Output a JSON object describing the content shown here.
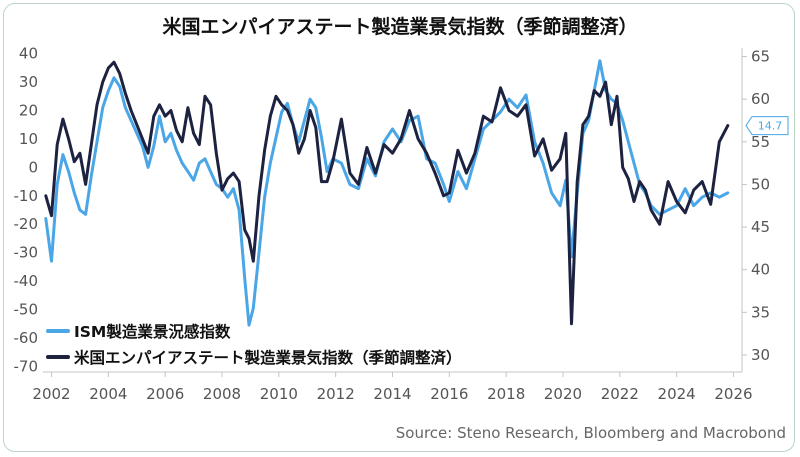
{
  "chart_data": {
    "type": "line",
    "title": "米国エンパイアステート製造業景気指数（季節調整済）",
    "source": "Source: Steno Research, Bloomberg and Macrobond",
    "x_ticks": [
      "2002",
      "2004",
      "2006",
      "2008",
      "2010",
      "2012",
      "2014",
      "2016",
      "2018",
      "2020",
      "2022",
      "2024",
      "2026"
    ],
    "xlim": [
      2001.7,
      2026.3
    ],
    "y_left": {
      "lim": [
        -72,
        42
      ],
      "ticks": [
        "40",
        "30",
        "20",
        "10",
        "0",
        "-10",
        "-20",
        "-30",
        "-40",
        "-50",
        "-60",
        "-70"
      ]
    },
    "y_right": {
      "lim": [
        28,
        66
      ],
      "ticks": [
        "65",
        "60",
        "55",
        "50",
        "45",
        "40",
        "35",
        "30"
      ]
    },
    "last_value_label": "14.7",
    "grid": false,
    "legend_position": "bottom-left",
    "series": [
      {
        "name": "ISM製造業景況感指数",
        "axis": "right",
        "color": "#4aa6e6",
        "x": [
          2001.8,
          2002.0,
          2002.2,
          2002.4,
          2002.6,
          2002.8,
          2003.0,
          2003.2,
          2003.4,
          2003.6,
          2003.8,
          2004.0,
          2004.2,
          2004.4,
          2004.6,
          2004.8,
          2005.0,
          2005.2,
          2005.4,
          2005.6,
          2005.8,
          2006.0,
          2006.2,
          2006.4,
          2006.6,
          2006.8,
          2007.0,
          2007.2,
          2007.4,
          2007.6,
          2007.8,
          2008.0,
          2008.2,
          2008.4,
          2008.6,
          2008.8,
          2008.95,
          2009.1,
          2009.3,
          2009.5,
          2009.7,
          2009.9,
          2010.1,
          2010.3,
          2010.5,
          2010.7,
          2010.9,
          2011.1,
          2011.3,
          2011.5,
          2011.7,
          2011.9,
          2012.2,
          2012.5,
          2012.8,
          2013.1,
          2013.4,
          2013.7,
          2014.0,
          2014.3,
          2014.6,
          2014.9,
          2015.2,
          2015.5,
          2015.8,
          2016.0,
          2016.3,
          2016.6,
          2016.9,
          2017.2,
          2017.5,
          2017.8,
          2018.1,
          2018.4,
          2018.7,
          2019.0,
          2019.3,
          2019.6,
          2019.9,
          2020.1,
          2020.3,
          2020.5,
          2020.7,
          2020.9,
          2021.1,
          2021.3,
          2021.5,
          2021.7,
          2021.9,
          2022.1,
          2022.3,
          2022.5,
          2022.7,
          2022.9,
          2023.1,
          2023.4,
          2023.7,
          2024.0,
          2024.3,
          2024.6,
          2024.9,
          2025.2,
          2025.5,
          2025.8
        ],
        "values": [
          46.0,
          41.0,
          50.0,
          53.5,
          51.5,
          49.0,
          47.0,
          46.5,
          51.0,
          55.0,
          59.0,
          61.0,
          62.5,
          61.5,
          59.0,
          57.5,
          56.0,
          54.5,
          52.0,
          54.5,
          58.0,
          55.0,
          56.0,
          54.0,
          52.5,
          51.5,
          50.5,
          52.5,
          53.0,
          51.5,
          50.0,
          49.5,
          48.5,
          49.5,
          47.0,
          39.0,
          33.5,
          35.5,
          42.0,
          48.5,
          52.5,
          55.5,
          58.5,
          59.5,
          57.0,
          55.0,
          57.5,
          60.0,
          59.0,
          55.5,
          51.5,
          53.0,
          52.5,
          50.0,
          49.5,
          53.0,
          51.0,
          55.0,
          56.5,
          55.0,
          57.5,
          58.0,
          53.0,
          52.5,
          50.0,
          48.0,
          51.5,
          49.5,
          53.0,
          56.5,
          57.5,
          58.5,
          60.0,
          59.0,
          60.5,
          55.0,
          52.5,
          49.0,
          47.5,
          50.5,
          41.5,
          49.0,
          56.0,
          57.5,
          61.0,
          64.5,
          61.0,
          60.0,
          59.5,
          57.5,
          55.0,
          52.5,
          50.0,
          49.0,
          47.5,
          46.5,
          47.0,
          47.5,
          49.5,
          47.5,
          48.5,
          49.0,
          48.5,
          49.0
        ]
      },
      {
        "name": "米国エンパイアステート製造業景気指数（季節調整済）",
        "axis": "left",
        "color": "#1c2240",
        "x": [
          2001.8,
          2002.0,
          2002.2,
          2002.4,
          2002.6,
          2002.8,
          2003.0,
          2003.2,
          2003.4,
          2003.6,
          2003.8,
          2004.0,
          2004.2,
          2004.4,
          2004.6,
          2004.8,
          2005.0,
          2005.2,
          2005.4,
          2005.6,
          2005.8,
          2006.0,
          2006.2,
          2006.4,
          2006.6,
          2006.8,
          2007.0,
          2007.2,
          2007.4,
          2007.6,
          2007.8,
          2008.0,
          2008.2,
          2008.4,
          2008.6,
          2008.8,
          2008.95,
          2009.1,
          2009.3,
          2009.5,
          2009.7,
          2009.9,
          2010.1,
          2010.3,
          2010.5,
          2010.7,
          2010.9,
          2011.1,
          2011.3,
          2011.5,
          2011.7,
          2011.9,
          2012.2,
          2012.5,
          2012.8,
          2013.1,
          2013.4,
          2013.7,
          2014.0,
          2014.3,
          2014.6,
          2014.9,
          2015.2,
          2015.5,
          2015.8,
          2016.0,
          2016.3,
          2016.6,
          2016.9,
          2017.2,
          2017.5,
          2017.8,
          2018.1,
          2018.4,
          2018.7,
          2019.0,
          2019.3,
          2019.6,
          2019.9,
          2020.1,
          2020.3,
          2020.5,
          2020.7,
          2020.9,
          2021.1,
          2021.3,
          2021.5,
          2021.7,
          2021.9,
          2022.1,
          2022.3,
          2022.5,
          2022.7,
          2022.9,
          2023.1,
          2023.4,
          2023.7,
          2024.0,
          2024.3,
          2024.6,
          2024.9,
          2025.2,
          2025.5,
          2025.8
        ],
        "values": [
          -10.0,
          -17.0,
          8.0,
          17.0,
          10.0,
          2.0,
          5.0,
          -6.0,
          8.0,
          22.0,
          30.0,
          35.0,
          37.0,
          33.0,
          26.0,
          20.0,
          15.0,
          10.0,
          5.0,
          18.0,
          22.0,
          18.0,
          20.0,
          13.0,
          9.0,
          21.0,
          12.0,
          8.0,
          25.0,
          22.0,
          5.0,
          -8.0,
          -4.0,
          -2.0,
          -5.0,
          -22.0,
          -25.0,
          -33.0,
          -10.0,
          6.0,
          18.0,
          25.0,
          22.0,
          20.0,
          15.0,
          5.0,
          10.0,
          20.0,
          14.0,
          -5.0,
          -5.0,
          2.0,
          17.0,
          -2.0,
          -6.0,
          7.0,
          -2.0,
          8.0,
          5.0,
          10.0,
          20.0,
          10.0,
          5.0,
          -2.0,
          -10.0,
          -9.0,
          6.0,
          -2.0,
          5.0,
          18.0,
          16.0,
          28.0,
          20.0,
          18.0,
          22.0,
          4.0,
          10.0,
          -1.0,
          3.0,
          12.0,
          -55.0,
          -5.0,
          15.0,
          18.0,
          27.0,
          25.0,
          30.0,
          15.0,
          25.0,
          0.0,
          -4.0,
          -12.0,
          -5.0,
          -8.0,
          -15.0,
          -20.0,
          -5.0,
          -12.0,
          -16.0,
          -8.0,
          -5.0,
          -13.0,
          9.0,
          14.7
        ]
      }
    ]
  }
}
